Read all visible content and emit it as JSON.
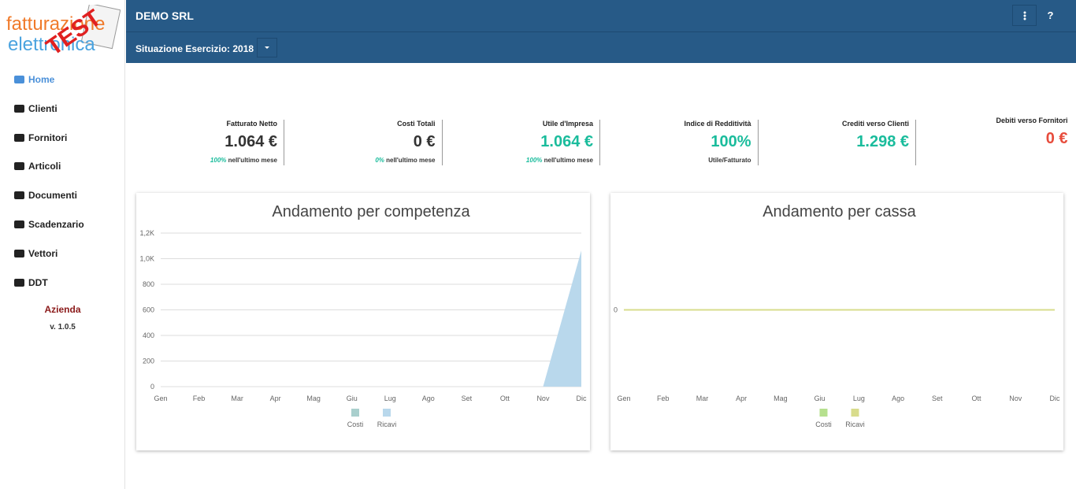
{
  "logo": {
    "line1": "fatturazione",
    "line2": "elettronica",
    "stamp": "TEST"
  },
  "menu": [
    "Home",
    "Clienti",
    "Fornitori",
    "Articoli",
    "Documenti",
    "Scadenzario",
    "Vettori",
    "DDT"
  ],
  "company_section": "Azienda",
  "version": "v. 1.0.5",
  "header": {
    "company": "DEMO SRL",
    "exercise": "Situazione Esercizio: 2018",
    "help": "?"
  },
  "kpis": [
    {
      "label": "Fatturato Netto",
      "value": "1.064 €",
      "percent": "100%",
      "note": "nell'ultimo mese"
    },
    {
      "label": "Costi Totali",
      "value": "0 €",
      "percent": "0%",
      "note": "nell'ultimo mese"
    },
    {
      "label": "Utile d'Impresa",
      "value": "1.064 €",
      "percent": "100%",
      "note": "nell'ultimo mese"
    },
    {
      "label": "Indice di Redditività",
      "value": "100%",
      "note": "Utile/Fatturato"
    },
    {
      "label": "Crediti verso Clienti",
      "value": "1.298 €"
    },
    {
      "label": "Debiti verso Fornitori",
      "value": "0 €"
    }
  ],
  "chart_data": [
    {
      "type": "area",
      "title": "Andamento per competenza",
      "categories": [
        "Gen",
        "Feb",
        "Mar",
        "Apr",
        "Mag",
        "Giu",
        "Lug",
        "Ago",
        "Set",
        "Ott",
        "Nov",
        "Dic"
      ],
      "series": [
        {
          "name": "Costi",
          "color": "#a9cfcd",
          "values": [
            0,
            0,
            0,
            0,
            0,
            0,
            0,
            0,
            0,
            0,
            0,
            0
          ]
        },
        {
          "name": "Ricavi",
          "color": "#b9d8ec",
          "values": [
            0,
            0,
            0,
            0,
            0,
            0,
            0,
            0,
            0,
            0,
            0,
            1064
          ]
        }
      ],
      "ylim": [
        0,
        1200
      ],
      "yticks": [
        0,
        200,
        400,
        600,
        800,
        {
          "value": 1000,
          "label": "1,0K"
        },
        {
          "value": 1200,
          "label": "1,2K"
        }
      ],
      "grid": true
    },
    {
      "type": "line",
      "title": "Andamento per cassa",
      "categories": [
        "Gen",
        "Feb",
        "Mar",
        "Apr",
        "Mag",
        "Giu",
        "Lug",
        "Ago",
        "Set",
        "Ott",
        "Nov",
        "Dic"
      ],
      "series": [
        {
          "name": "Costi",
          "color": "#b6e08e",
          "values": [
            0,
            0,
            0,
            0,
            0,
            0,
            0,
            0,
            0,
            0,
            0,
            0
          ]
        },
        {
          "name": "Ricavi",
          "color": "#d8dc8c",
          "values": [
            0,
            0,
            0,
            0,
            0,
            0,
            0,
            0,
            0,
            0,
            0,
            0
          ]
        }
      ],
      "ylim": [
        -1,
        1
      ],
      "yticks": [
        0
      ],
      "grid": false
    }
  ]
}
